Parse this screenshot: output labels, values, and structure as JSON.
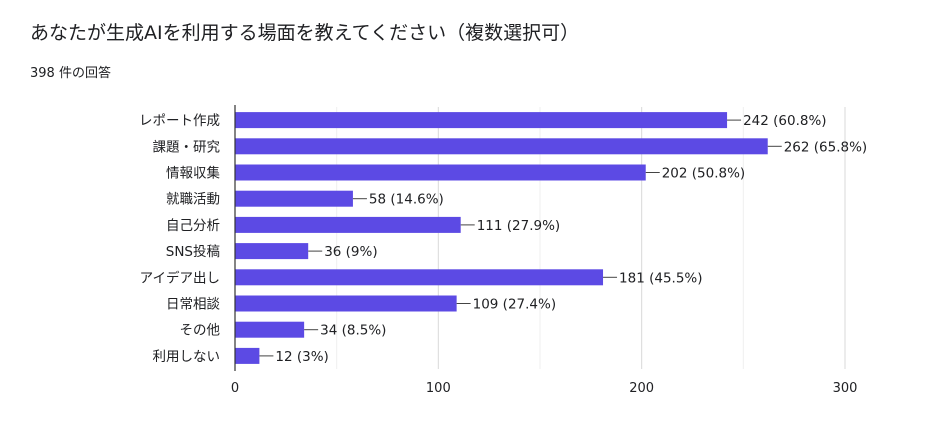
{
  "header": {
    "title": "あなたが生成AIを利用する場面を教えてください（複数選択可）",
    "response_count": "398 件の回答"
  },
  "chart_data": {
    "type": "bar",
    "orientation": "horizontal",
    "title": "あなたが生成AIを利用する場面を教えてください（複数選択可）",
    "categories": [
      "レポート作成",
      "課題・研究",
      "情報収集",
      "就職活動",
      "自己分析",
      "SNS投稿",
      "アイデア出し",
      "日常相談",
      "その他",
      "利用しない"
    ],
    "values": [
      242,
      262,
      202,
      58,
      111,
      36,
      181,
      109,
      34,
      12
    ],
    "labels": [
      "242 (60.8%)",
      "262 (65.8%)",
      "202 (50.8%)",
      "58 (14.6%)",
      "111 (27.9%)",
      "36 (9%)",
      "181 (45.5%)",
      "109 (27.4%)",
      "34 (8.5%)",
      "12 (3%)"
    ],
    "xlim": [
      0,
      300
    ],
    "xticks": [
      0,
      100,
      200,
      300
    ],
    "grid": true,
    "bar_color": "#5c4ae4"
  }
}
